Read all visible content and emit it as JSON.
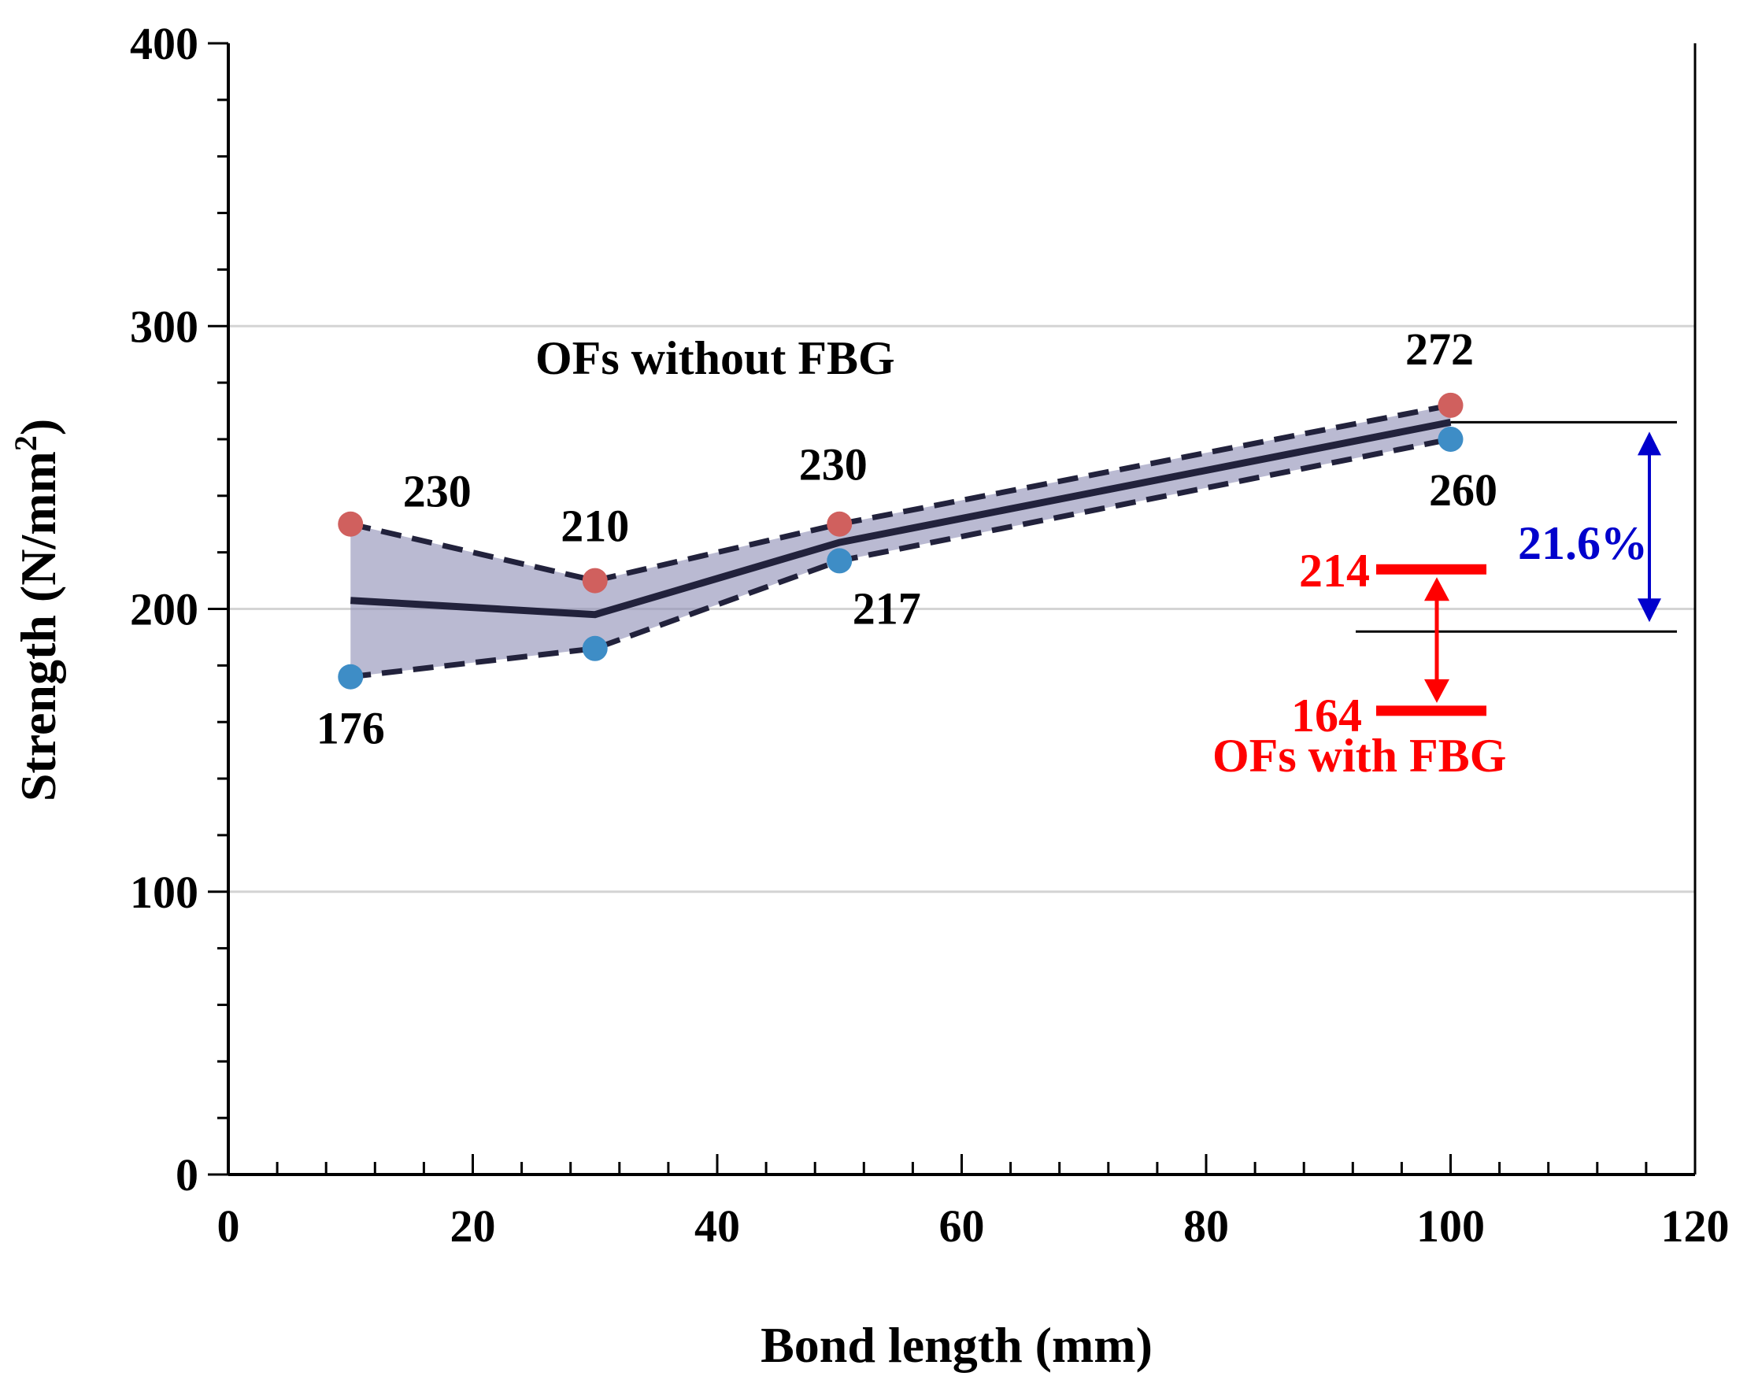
{
  "chart_data": {
    "type": "line",
    "xlabel": "Bond length (mm)",
    "ylabel": "Strength (N/mm",
    "ylabel_sup": "2",
    "ylabel_close": ")",
    "xlim": [
      0,
      120
    ],
    "ylim": [
      0,
      400
    ],
    "xticks": [
      0,
      20,
      40,
      60,
      80,
      100,
      120
    ],
    "yticks": [
      0,
      100,
      200,
      300,
      400
    ],
    "x_minor_step": 4,
    "y_minor_step": 20,
    "gridlines_y": [
      100,
      200,
      300
    ],
    "x": [
      10,
      30,
      50,
      100
    ],
    "series": [
      {
        "name": "max",
        "values": [
          230,
          210,
          230,
          272
        ],
        "color": "#d0605e",
        "labels": [
          "230",
          "210",
          "230",
          "272"
        ]
      },
      {
        "name": "min",
        "values": [
          176,
          186,
          217,
          260
        ],
        "color": "#3e8dc6",
        "labels": [
          "176",
          "",
          "217",
          "260"
        ]
      },
      {
        "name": "mean",
        "values": [
          203,
          198,
          223.5,
          266
        ]
      }
    ],
    "band_color": "#8c8cb4",
    "line_color": "#22223c",
    "annotations": {
      "without_fbg_label": "OFs without FBG",
      "with_fbg_label": "OFs with FBG",
      "with_fbg_max": 214,
      "with_fbg_min": 164,
      "with_fbg_max_label": "214",
      "with_fbg_min_label": "164",
      "with_fbg_color": "#ff0000",
      "ref_line_upper": 266,
      "ref_line_lower": 192,
      "percent_label": "21.6%",
      "percent_color": "#0000cc"
    }
  }
}
